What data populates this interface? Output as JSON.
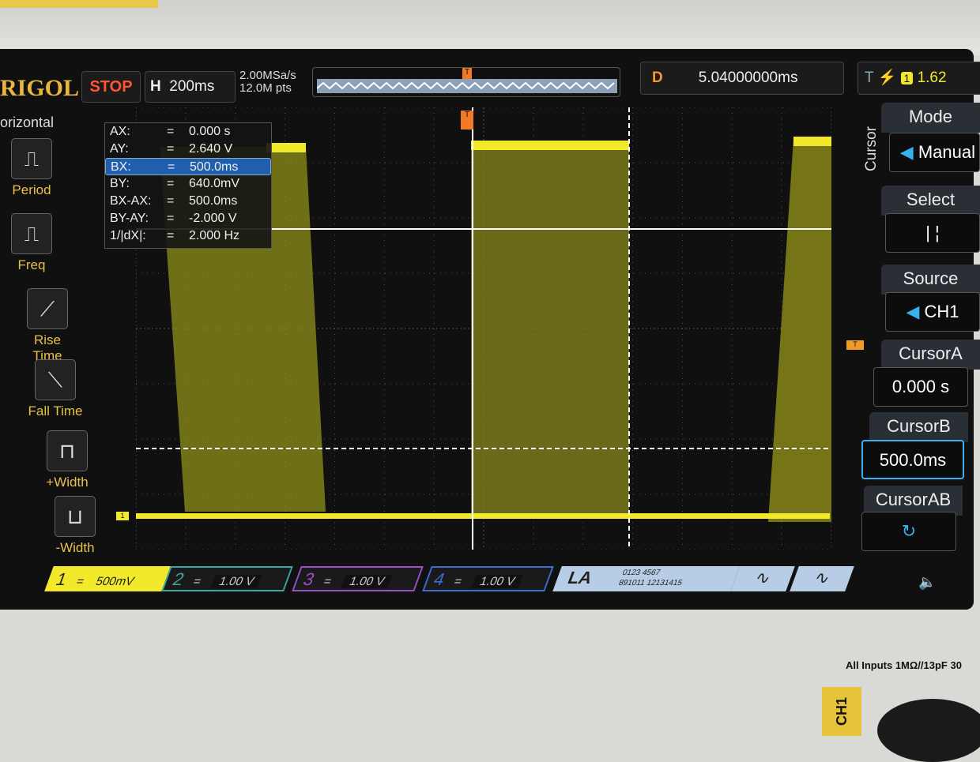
{
  "brand": "RIGOL",
  "status": "STOP",
  "horizontal": {
    "label": "H",
    "timebase": "200ms",
    "sample_rate": "2.00MSa/s",
    "points": "12.0M pts"
  },
  "delay": {
    "label": "D",
    "value": "5.04000000ms"
  },
  "trigger": {
    "label": "T",
    "level": "1.62"
  },
  "left_menu": {
    "title": "orizontal",
    "items": [
      {
        "label": "Period",
        "icon": "period-icon"
      },
      {
        "label": "Freq",
        "icon": "frequency-icon"
      },
      {
        "label": "Rise Time",
        "icon": "rise-time-icon"
      },
      {
        "label": "Fall Time",
        "icon": "fall-time-icon"
      },
      {
        "label": "+Width",
        "icon": "positive-width-icon"
      },
      {
        "label": "-Width",
        "icon": "negative-width-icon"
      }
    ]
  },
  "readout": [
    {
      "k": "AX:",
      "v": "0.000 s"
    },
    {
      "k": "AY:",
      "v": "2.640 V"
    },
    {
      "k": "BX:",
      "v": "500.0ms",
      "selected": true
    },
    {
      "k": "BY:",
      "v": "640.0mV"
    },
    {
      "k": "BX-AX:",
      "v": "500.0ms"
    },
    {
      "k": "BY-AY:",
      "v": "-2.000 V"
    },
    {
      "k": "1/|dX|:",
      "v": "2.000 Hz"
    }
  ],
  "right_menu": {
    "title": "Cursor",
    "mode": {
      "label": "Mode",
      "value": "Manual"
    },
    "select": {
      "label": "Select",
      "value": "| ¦"
    },
    "source": {
      "label": "Source",
      "value": "CH1"
    },
    "cursor_a": {
      "label": "CursorA",
      "value": "0.000 s"
    },
    "cursor_b": {
      "label": "CursorB",
      "value": "500.0ms"
    },
    "cursor_ab": {
      "label": "CursorAB",
      "value": "↻"
    }
  },
  "channels": [
    {
      "num": "1",
      "coupling": "=",
      "scale": "500mV",
      "color": "#f2e92a"
    },
    {
      "num": "2",
      "coupling": "=",
      "scale": "1.00 V",
      "color": "#3aa7a0"
    },
    {
      "num": "3",
      "coupling": "=",
      "scale": "1.00 V",
      "color": "#9a4fc9"
    },
    {
      "num": "4",
      "coupling": "=",
      "scale": "1.00 V",
      "color": "#3a6fd0"
    }
  ],
  "la": {
    "label": "LA",
    "row1": "0123  4567",
    "row2": "891011 12131415"
  },
  "markers": {
    "ch1": "1",
    "trigger": "T"
  },
  "front_panel": {
    "inputs_text": "All Inputs 1MΩ//13pF 30",
    "ch1_label": "CH1"
  }
}
